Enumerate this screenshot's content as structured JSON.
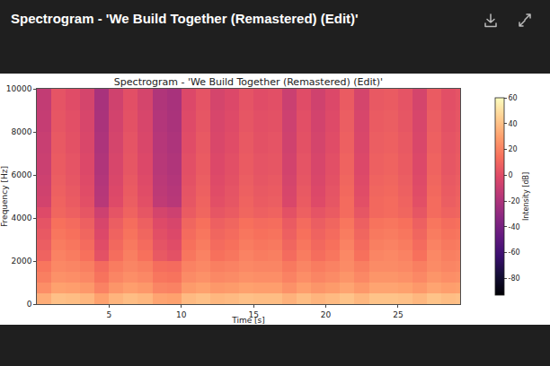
{
  "header": {
    "title": "Spectrogram - 'We Build Together (Remastered) (Edit)'"
  },
  "chart_data": {
    "type": "heatmap",
    "title": "Spectrogram - 'We Build Together (Remastered) (Edit)'",
    "x_label": "Time [s]",
    "y_label": "Frequency [Hz]",
    "xlim": [
      0,
      29.3
    ],
    "xticks": [
      5,
      10,
      15,
      20,
      25
    ],
    "ylim": [
      0,
      10000
    ],
    "yticks": [
      0,
      2000,
      4000,
      6000,
      8000,
      10000
    ],
    "grid": false,
    "color": "magma",
    "x": [
      0.5,
      1.5,
      2.5,
      3.5,
      4.5,
      5.5,
      6.5,
      7.5,
      8.5,
      9.5,
      10.5,
      11.5,
      12.5,
      13.5,
      14.5,
      15.5,
      16.5,
      17.5,
      18.5,
      19.5,
      20.5,
      21.5,
      22.5,
      23.5,
      24.5,
      25.5,
      26.5,
      27.5,
      28.5,
      29.5
    ],
    "y": [
      250,
      750,
      1250,
      1750,
      2250,
      2750,
      3250,
      3750,
      4250,
      4750,
      5250,
      5750,
      6250,
      6750,
      7250,
      7750,
      8250,
      8750,
      9250,
      9750
    ],
    "z": [
      [
        34,
        40,
        39,
        37,
        30,
        36,
        39,
        37,
        31,
        30,
        38,
        40,
        37,
        38,
        40,
        39,
        39,
        35,
        39,
        36,
        38,
        41,
        37,
        41,
        41,
        40,
        37,
        41,
        39,
        40
      ],
      [
        24,
        30,
        29,
        27,
        20,
        26,
        29,
        27,
        21,
        20,
        28,
        30,
        27,
        28,
        30,
        29,
        29,
        25,
        29,
        26,
        28,
        31,
        27,
        31,
        31,
        30,
        27,
        31,
        29,
        30
      ],
      [
        19,
        25,
        24,
        22,
        15,
        21,
        24,
        22,
        16,
        15,
        23,
        25,
        22,
        23,
        25,
        24,
        24,
        20,
        24,
        21,
        23,
        26,
        22,
        26,
        26,
        25,
        22,
        26,
        24,
        25
      ],
      [
        16,
        22,
        21,
        19,
        12,
        18,
        21,
        19,
        13,
        12,
        20,
        22,
        19,
        20,
        22,
        21,
        21,
        17,
        21,
        18,
        20,
        23,
        19,
        23,
        23,
        22,
        19,
        23,
        21,
        22
      ],
      [
        9,
        20,
        18,
        14,
        2,
        13,
        19,
        14,
        5,
        2,
        16,
        20,
        14,
        16,
        20,
        18,
        19,
        12,
        18,
        13,
        16,
        22,
        14,
        21,
        22,
        20,
        14,
        22,
        19,
        20
      ],
      [
        7,
        18,
        16,
        12,
        0,
        11,
        17,
        12,
        3,
        0,
        14,
        18,
        12,
        14,
        18,
        16,
        17,
        10,
        16,
        11,
        14,
        20,
        12,
        19,
        20,
        18,
        12,
        20,
        17,
        18
      ],
      [
        5,
        16,
        14,
        10,
        -2,
        9,
        15,
        10,
        1,
        -2,
        12,
        16,
        10,
        12,
        16,
        14,
        15,
        8,
        14,
        9,
        12,
        18,
        10,
        17,
        18,
        16,
        10,
        18,
        15,
        16
      ],
      [
        3,
        14,
        12,
        8,
        -4,
        7,
        13,
        8,
        -1,
        -4,
        10,
        14,
        8,
        10,
        14,
        12,
        13,
        6,
        12,
        7,
        10,
        16,
        8,
        15,
        16,
        14,
        8,
        16,
        13,
        14
      ],
      [
        -1,
        10,
        8,
        4,
        -8,
        3,
        9,
        4,
        -5,
        -8,
        6,
        10,
        4,
        6,
        10,
        8,
        9,
        2,
        8,
        3,
        6,
        12,
        4,
        11,
        12,
        10,
        4,
        12,
        9,
        10
      ],
      [
        -6,
        9,
        6,
        1,
        -16,
        -1,
        7,
        1,
        -13,
        -16,
        4,
        9,
        1,
        4,
        9,
        6,
        7,
        -3,
        6,
        -1,
        4,
        12,
        1,
        11,
        12,
        9,
        1,
        12,
        7,
        9
      ],
      [
        -7,
        8,
        5,
        0,
        -17,
        -2,
        6,
        0,
        -14,
        -17,
        3,
        8,
        0,
        3,
        8,
        5,
        6,
        -4,
        5,
        -2,
        3,
        11,
        0,
        10,
        11,
        8,
        0,
        11,
        6,
        8
      ],
      [
        -8,
        7,
        4,
        -1,
        -18,
        -3,
        5,
        -1,
        -15,
        -18,
        2,
        7,
        -1,
        2,
        7,
        4,
        5,
        -5,
        4,
        -3,
        2,
        10,
        -1,
        9,
        10,
        7,
        -1,
        10,
        5,
        7
      ],
      [
        -9,
        6,
        3,
        -2,
        -19,
        -4,
        4,
        -2,
        -16,
        -19,
        1,
        6,
        -2,
        1,
        6,
        3,
        4,
        -6,
        3,
        -4,
        1,
        9,
        -2,
        8,
        9,
        6,
        -2,
        9,
        4,
        6
      ],
      [
        -9,
        6,
        3,
        -2,
        -19,
        -4,
        4,
        -2,
        -16,
        -19,
        1,
        6,
        -2,
        1,
        6,
        3,
        4,
        -6,
        3,
        -4,
        1,
        9,
        -2,
        8,
        9,
        6,
        -2,
        9,
        4,
        6
      ],
      [
        -10,
        5,
        2,
        -3,
        -20,
        -5,
        3,
        -3,
        -17,
        -20,
        0,
        5,
        -3,
        0,
        5,
        2,
        3,
        -7,
        2,
        -5,
        0,
        8,
        -3,
        7,
        8,
        5,
        -3,
        8,
        3,
        5
      ],
      [
        -10,
        5,
        2,
        -3,
        -20,
        -5,
        3,
        -3,
        -17,
        -20,
        0,
        5,
        -3,
        0,
        5,
        2,
        3,
        -7,
        2,
        -5,
        0,
        8,
        -3,
        7,
        8,
        5,
        -3,
        8,
        3,
        5
      ],
      [
        -11,
        4,
        1,
        -4,
        -21,
        -6,
        2,
        -4,
        -18,
        -21,
        -1,
        4,
        -4,
        -1,
        4,
        1,
        2,
        -8,
        1,
        -6,
        -1,
        7,
        -4,
        6,
        7,
        4,
        -4,
        7,
        2,
        4
      ],
      [
        -11,
        4,
        1,
        -4,
        -21,
        -6,
        2,
        -4,
        -18,
        -21,
        -1,
        4,
        -4,
        -1,
        4,
        1,
        2,
        -8,
        1,
        -6,
        -1,
        7,
        -4,
        6,
        7,
        4,
        -4,
        7,
        2,
        4
      ],
      [
        -12,
        3,
        0,
        -5,
        -22,
        -7,
        1,
        -5,
        -19,
        -22,
        -2,
        3,
        -5,
        -2,
        3,
        0,
        1,
        -9,
        0,
        -7,
        -2,
        6,
        -5,
        5,
        6,
        3,
        -5,
        6,
        1,
        3
      ],
      [
        -12,
        3,
        0,
        -5,
        -22,
        -7,
        1,
        -5,
        -19,
        -22,
        -2,
        3,
        -5,
        -2,
        3,
        0,
        1,
        -9,
        0,
        -7,
        -2,
        6,
        -5,
        5,
        6,
        3,
        -5,
        6,
        1,
        3
      ]
    ],
    "colorbar": {
      "label": "Intensity [dB]",
      "range": [
        -93,
        60
      ],
      "ticks": [
        -80,
        -60,
        -40,
        -20,
        0,
        20,
        40,
        60
      ]
    }
  }
}
